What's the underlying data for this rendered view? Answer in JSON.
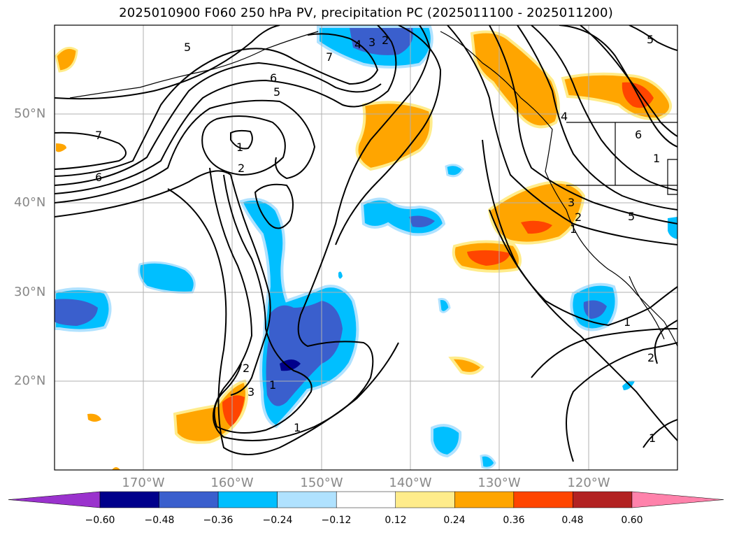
{
  "title": "2025010900 F060 250 hPa PV, precipitation PC (2025011100 - 2025011200)",
  "map": {
    "lat_labels": [
      "50°N",
      "40°N",
      "30°N",
      "20°N"
    ],
    "lon_labels": [
      "170°W",
      "160°W",
      "150°W",
      "140°W",
      "130°W",
      "120°W"
    ],
    "contour_labels": [
      "5",
      "7",
      "6",
      "5",
      "4",
      "3",
      "2",
      "5",
      "1",
      "2",
      "7",
      "6",
      "3",
      "2",
      "1",
      "5",
      "4",
      "6",
      "1",
      "3",
      "2",
      "1",
      "1",
      "2",
      "1",
      "1"
    ]
  },
  "colorbar": {
    "ticks": [
      "−0.60",
      "−0.48",
      "−0.36",
      "−0.24",
      "−0.12",
      "0.12",
      "0.24",
      "0.36",
      "0.48",
      "0.60"
    ],
    "colors": [
      "#9a32cd",
      "#00008b",
      "#3a5fcd",
      "#00bfff",
      "#b0e2ff",
      "#ffffff",
      "#ffec8b",
      "#ffa500",
      "#ff4500",
      "#b22222",
      "#ff82ab"
    ]
  }
}
